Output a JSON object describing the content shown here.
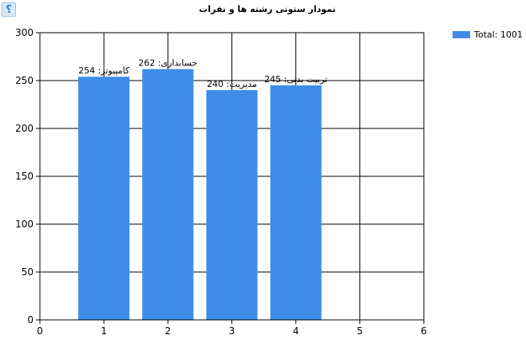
{
  "help_glyph": "؟",
  "chart_data": {
    "type": "bar",
    "title": "نمودار ستونی رشته ها و نفرات",
    "xlim": [
      0,
      6
    ],
    "ylim": [
      0,
      300
    ],
    "x_ticks": [
      "0",
      "1",
      "2",
      "3",
      "4",
      "5",
      "6"
    ],
    "y_ticks": [
      "0",
      "50",
      "100",
      "150",
      "200",
      "250",
      "300"
    ],
    "grid": true,
    "legend_position": "top-right",
    "x": [
      1,
      2,
      3,
      4
    ],
    "values": [
      254,
      262,
      240,
      245
    ],
    "data_labels": [
      "کامپیوتر: 254",
      "حسابداری: 262",
      "مدیریت: 240",
      "تربیت بدنی: 245"
    ],
    "series": [
      {
        "name": "Total: 1001",
        "color": "#3f8cea"
      }
    ]
  }
}
